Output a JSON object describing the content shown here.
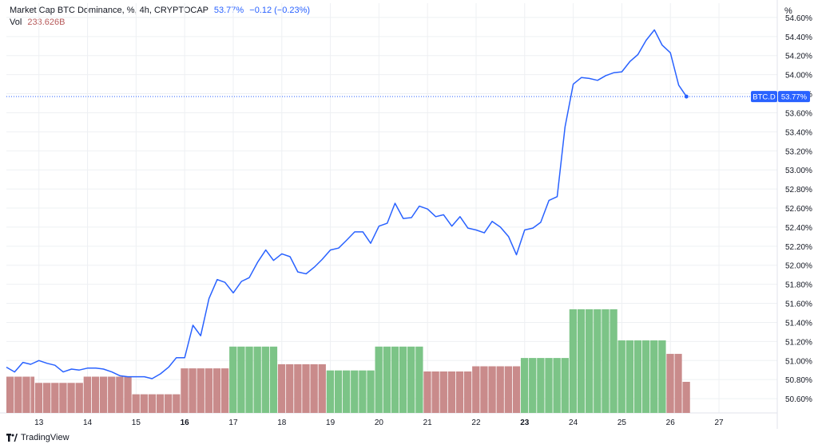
{
  "legend": {
    "symbol": "Market Cap BTC Dominance, %, 4h, CRYPTOCAP",
    "last": "53.77%",
    "change": "−0.12 (−0.23%)",
    "vol_label": "Vol",
    "vol_value": "233.626B"
  },
  "axis_unit": "%",
  "footer": {
    "brand": "TradingView"
  },
  "colors": {
    "line": "#2962ff",
    "vol_up": "#7cc487",
    "vol_down": "#c98b8b",
    "grid": "#eef0f3",
    "badge": "#2962ff"
  },
  "chart_data": {
    "type": "line",
    "title": "Market Cap BTC Dominance, %, 4h, CRYPTOCAP",
    "xlabel": "",
    "ylabel": "",
    "x_ticks": [
      {
        "day": 13,
        "label": "13",
        "bold": false
      },
      {
        "day": 14,
        "label": "14",
        "bold": false
      },
      {
        "day": 15,
        "label": "15",
        "bold": false
      },
      {
        "day": 16,
        "label": "16",
        "bold": true
      },
      {
        "day": 17,
        "label": "17",
        "bold": false
      },
      {
        "day": 18,
        "label": "18",
        "bold": false
      },
      {
        "day": 19,
        "label": "19",
        "bold": false
      },
      {
        "day": 20,
        "label": "20",
        "bold": false
      },
      {
        "day": 21,
        "label": "21",
        "bold": false
      },
      {
        "day": 22,
        "label": "22",
        "bold": false
      },
      {
        "day": 23,
        "label": "23",
        "bold": true
      },
      {
        "day": 24,
        "label": "24",
        "bold": false
      },
      {
        "day": 25,
        "label": "25",
        "bold": false
      },
      {
        "day": 26,
        "label": "26",
        "bold": false
      },
      {
        "day": 27,
        "label": "27",
        "bold": false
      }
    ],
    "y_ticks": [
      "50.60%",
      "50.80%",
      "51.00%",
      "51.20%",
      "51.40%",
      "51.60%",
      "51.80%",
      "52.00%",
      "52.20%",
      "52.40%",
      "52.60%",
      "52.80%",
      "53.00%",
      "53.20%",
      "53.40%",
      "53.60%",
      "53.80%",
      "54.00%",
      "54.20%",
      "54.40%",
      "54.60%"
    ],
    "y_tick_values": [
      50.6,
      50.8,
      51.0,
      51.2,
      51.4,
      51.6,
      51.8,
      52.0,
      52.2,
      52.4,
      52.6,
      52.8,
      53.0,
      53.2,
      53.4,
      53.6,
      53.8,
      54.0,
      54.2,
      54.4,
      54.6
    ],
    "ylim": [
      50.45,
      54.75
    ],
    "xlim": [
      12.33,
      28.2
    ],
    "current_label": "BTC.D",
    "current_value": 53.77,
    "current_value_label": "53.77%",
    "series": [
      {
        "x": [
          12.33,
          12.5,
          12.67,
          12.83,
          13.0,
          13.17,
          13.33,
          13.5,
          13.67,
          13.83,
          14.0,
          14.17,
          14.33,
          14.5,
          14.67,
          14.83,
          15.0,
          15.17,
          15.33,
          15.5,
          15.67,
          15.83,
          16.0,
          16.17,
          16.33,
          16.5,
          16.67,
          16.83,
          17.0,
          17.17,
          17.33,
          17.5,
          17.67,
          17.83,
          18.0,
          18.17,
          18.33,
          18.5,
          18.67,
          18.83,
          19.0,
          19.17,
          19.33,
          19.5,
          19.67,
          19.83,
          20.0,
          20.17,
          20.33,
          20.5,
          20.67,
          20.83,
          21.0,
          21.17,
          21.33,
          21.5,
          21.67,
          21.83,
          22.0,
          22.17,
          22.33,
          22.5,
          22.67,
          22.83,
          23.0,
          23.17,
          23.33,
          23.5,
          23.67,
          23.83,
          24.0,
          24.17,
          24.33,
          24.5,
          24.67,
          24.83,
          25.0,
          25.17,
          25.33,
          25.5,
          25.67,
          25.83,
          26.0,
          26.17,
          26.33
        ],
        "y": [
          50.93,
          50.88,
          50.98,
          50.96,
          51.0,
          50.97,
          50.95,
          50.88,
          50.91,
          50.9,
          50.92,
          50.92,
          50.91,
          50.88,
          50.84,
          50.83,
          50.83,
          50.83,
          50.81,
          50.86,
          50.93,
          51.03,
          51.03,
          51.37,
          51.26,
          51.65,
          51.85,
          51.82,
          51.71,
          51.83,
          51.87,
          52.03,
          52.16,
          52.05,
          52.12,
          52.09,
          51.93,
          51.91,
          51.98,
          52.06,
          52.16,
          52.18,
          52.26,
          52.35,
          52.35,
          52.23,
          52.41,
          52.44,
          52.65,
          52.49,
          52.5,
          52.62,
          52.59,
          52.51,
          52.53,
          52.41,
          52.51,
          52.39,
          52.37,
          52.34,
          52.46,
          52.4,
          52.3,
          52.11,
          52.37,
          52.39,
          52.45,
          52.68,
          52.72,
          53.45,
          53.9,
          53.97,
          53.96,
          53.94,
          53.99,
          54.02,
          54.03,
          54.14,
          54.21,
          54.36,
          54.47,
          54.31,
          54.23,
          53.89,
          53.77
        ]
      }
    ],
    "volume": {
      "label": "Vol",
      "blocks": [
        {
          "start": 12.33,
          "end": 12.92,
          "v": 0.35,
          "dir": "down"
        },
        {
          "start": 12.92,
          "end": 13.92,
          "v": 0.29,
          "dir": "down"
        },
        {
          "start": 13.92,
          "end": 14.92,
          "v": 0.35,
          "dir": "down"
        },
        {
          "start": 14.92,
          "end": 15.92,
          "v": 0.18,
          "dir": "down"
        },
        {
          "start": 15.92,
          "end": 16.92,
          "v": 0.43,
          "dir": "down"
        },
        {
          "start": 16.92,
          "end": 17.92,
          "v": 0.64,
          "dir": "up"
        },
        {
          "start": 17.92,
          "end": 18.92,
          "v": 0.47,
          "dir": "down"
        },
        {
          "start": 18.92,
          "end": 19.92,
          "v": 0.41,
          "dir": "up"
        },
        {
          "start": 19.92,
          "end": 20.92,
          "v": 0.64,
          "dir": "up"
        },
        {
          "start": 20.92,
          "end": 21.92,
          "v": 0.4,
          "dir": "down"
        },
        {
          "start": 21.92,
          "end": 22.92,
          "v": 0.45,
          "dir": "down"
        },
        {
          "start": 22.92,
          "end": 23.92,
          "v": 0.53,
          "dir": "up"
        },
        {
          "start": 23.92,
          "end": 24.92,
          "v": 1.0,
          "dir": "up"
        },
        {
          "start": 24.92,
          "end": 25.92,
          "v": 0.7,
          "dir": "up"
        },
        {
          "start": 25.92,
          "end": 26.25,
          "v": 0.57,
          "dir": "down"
        },
        {
          "start": 26.25,
          "end": 26.42,
          "v": 0.3,
          "dir": "down"
        }
      ]
    }
  }
}
